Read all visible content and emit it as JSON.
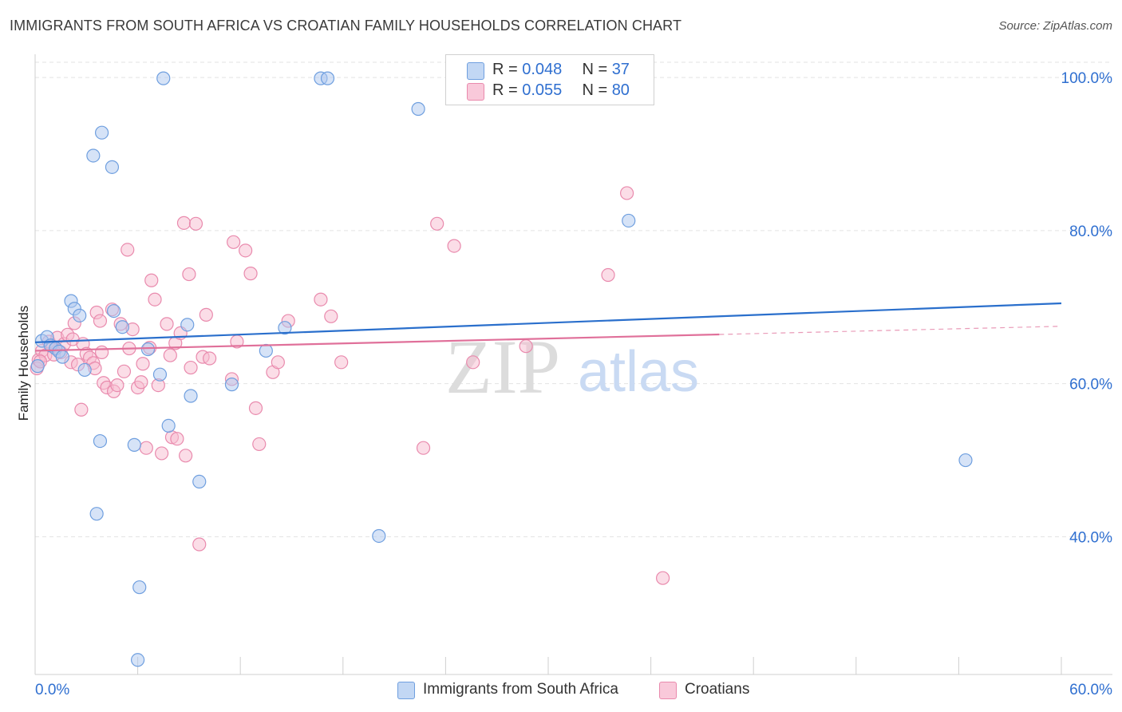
{
  "title": "IMMIGRANTS FROM SOUTH AFRICA VS CROATIAN FAMILY HOUSEHOLDS CORRELATION CHART",
  "source": "Source: ZipAtlas.com",
  "watermark": {
    "zip": "ZIP",
    "atlas": "atlas"
  },
  "colors": {
    "blue_fill": "#aec8ef",
    "blue_stroke": "#6f9fdf",
    "blue_line": "#2a6fcc",
    "pink_fill": "#f7bcd0",
    "pink_stroke": "#e98aad",
    "pink_line": "#e0709a",
    "axis_text": "#2f6fd0",
    "grid": "#e3e3e3"
  },
  "legend": {
    "blue": {
      "r_label": "R = ",
      "r_value": "0.048",
      "n_label": "N = ",
      "n_value": "37"
    },
    "pink": {
      "r_label": "R = ",
      "r_value": "0.055",
      "n_label": "N = ",
      "n_value": "80"
    }
  },
  "bottom_legend": {
    "blue": "Immigrants from South Africa",
    "pink": "Croatians"
  },
  "chart_data": {
    "type": "scatter",
    "title": "IMMIGRANTS FROM SOUTH AFRICA VS CROATIAN FAMILY HOUSEHOLDS CORRELATION CHART",
    "xlabel": "",
    "ylabel": "Family Households",
    "xlim": [
      0,
      60
    ],
    "ylim": [
      22,
      102
    ],
    "x_tick_labels": [
      {
        "value": 0,
        "label": "0.0%"
      },
      {
        "value": 60,
        "label": "60.0%"
      }
    ],
    "y_tick_labels": [
      {
        "value": 100,
        "label": "100.0%"
      },
      {
        "value": 80,
        "label": "80.0%"
      },
      {
        "value": 60,
        "label": "60.0%"
      },
      {
        "value": 40,
        "label": "40.0%"
      }
    ],
    "series": [
      {
        "name": "Immigrants from South Africa",
        "color": "blue",
        "trend": {
          "x": [
            0,
            60
          ],
          "y": [
            65.4,
            70.5
          ],
          "dashed_from": null
        },
        "points": [
          [
            0.4,
            65.6
          ],
          [
            0.7,
            66.1
          ],
          [
            0.9,
            65.0
          ],
          [
            1.2,
            64.6
          ],
          [
            1.4,
            64.2
          ],
          [
            1.6,
            63.5
          ],
          [
            2.1,
            70.8
          ],
          [
            2.3,
            69.8
          ],
          [
            2.6,
            68.9
          ],
          [
            2.9,
            61.8
          ],
          [
            3.4,
            89.8
          ],
          [
            3.6,
            43.0
          ],
          [
            3.8,
            52.5
          ],
          [
            3.9,
            92.8
          ],
          [
            4.5,
            88.3
          ],
          [
            4.6,
            69.5
          ],
          [
            5.1,
            67.4
          ],
          [
            5.8,
            52.0
          ],
          [
            6.1,
            33.4
          ],
          [
            6.0,
            23.9
          ],
          [
            6.6,
            64.5
          ],
          [
            7.3,
            61.2
          ],
          [
            7.5,
            99.9
          ],
          [
            7.8,
            54.5
          ],
          [
            8.9,
            67.7
          ],
          [
            9.1,
            58.4
          ],
          [
            9.6,
            47.2
          ],
          [
            11.5,
            59.9
          ],
          [
            13.5,
            64.3
          ],
          [
            14.6,
            67.3
          ],
          [
            16.7,
            99.9
          ],
          [
            17.1,
            99.9
          ],
          [
            20.1,
            40.1
          ],
          [
            22.4,
            95.9
          ],
          [
            34.7,
            81.3
          ],
          [
            54.4,
            50.0
          ],
          [
            0.15,
            62.3
          ]
        ]
      },
      {
        "name": "Croatians",
        "color": "pink",
        "trend": {
          "x": [
            0,
            60
          ],
          "y": [
            64.3,
            67.5
          ],
          "dashed_from": 40
        },
        "points": [
          [
            0.2,
            63.1
          ],
          [
            0.4,
            64.3
          ],
          [
            0.6,
            63.7
          ],
          [
            0.8,
            65.5
          ],
          [
            1.0,
            64.9
          ],
          [
            1.1,
            63.8
          ],
          [
            1.3,
            66.0
          ],
          [
            1.5,
            64.1
          ],
          [
            1.7,
            65.2
          ],
          [
            1.9,
            66.4
          ],
          [
            2.1,
            62.8
          ],
          [
            2.2,
            65.8
          ],
          [
            2.3,
            67.9
          ],
          [
            2.5,
            62.5
          ],
          [
            2.7,
            56.6
          ],
          [
            2.8,
            65.2
          ],
          [
            3.0,
            63.9
          ],
          [
            3.2,
            63.4
          ],
          [
            3.4,
            62.7
          ],
          [
            3.5,
            62.0
          ],
          [
            3.6,
            69.3
          ],
          [
            3.8,
            68.2
          ],
          [
            3.9,
            64.1
          ],
          [
            4.0,
            60.1
          ],
          [
            4.2,
            59.5
          ],
          [
            4.5,
            69.7
          ],
          [
            4.6,
            59.0
          ],
          [
            4.8,
            59.8
          ],
          [
            5.0,
            67.8
          ],
          [
            5.2,
            61.6
          ],
          [
            5.4,
            77.5
          ],
          [
            5.5,
            64.6
          ],
          [
            5.7,
            67.1
          ],
          [
            6.0,
            59.5
          ],
          [
            6.2,
            60.2
          ],
          [
            6.3,
            62.6
          ],
          [
            6.5,
            51.6
          ],
          [
            6.7,
            64.7
          ],
          [
            6.8,
            73.5
          ],
          [
            7.0,
            71.0
          ],
          [
            7.2,
            59.8
          ],
          [
            7.4,
            50.9
          ],
          [
            7.7,
            67.8
          ],
          [
            7.9,
            63.7
          ],
          [
            8.0,
            53.0
          ],
          [
            8.2,
            65.3
          ],
          [
            8.3,
            52.8
          ],
          [
            8.5,
            66.6
          ],
          [
            8.7,
            81.0
          ],
          [
            8.8,
            50.6
          ],
          [
            9.0,
            74.3
          ],
          [
            9.1,
            62.1
          ],
          [
            9.4,
            80.9
          ],
          [
            9.6,
            39.0
          ],
          [
            9.8,
            63.5
          ],
          [
            10.0,
            69.0
          ],
          [
            10.2,
            63.3
          ],
          [
            11.5,
            60.6
          ],
          [
            11.6,
            78.5
          ],
          [
            11.8,
            65.5
          ],
          [
            12.3,
            77.4
          ],
          [
            12.6,
            74.4
          ],
          [
            12.9,
            56.8
          ],
          [
            13.1,
            52.1
          ],
          [
            13.9,
            61.5
          ],
          [
            14.2,
            62.8
          ],
          [
            14.8,
            68.2
          ],
          [
            16.7,
            71.0
          ],
          [
            17.3,
            68.8
          ],
          [
            17.9,
            62.8
          ],
          [
            22.7,
            51.6
          ],
          [
            23.5,
            80.9
          ],
          [
            24.5,
            78.0
          ],
          [
            25.6,
            62.8
          ],
          [
            28.7,
            64.9
          ],
          [
            33.5,
            74.2
          ],
          [
            34.6,
            84.9
          ],
          [
            36.7,
            34.6
          ],
          [
            0.1,
            62.0
          ],
          [
            0.3,
            62.9
          ]
        ]
      }
    ]
  }
}
